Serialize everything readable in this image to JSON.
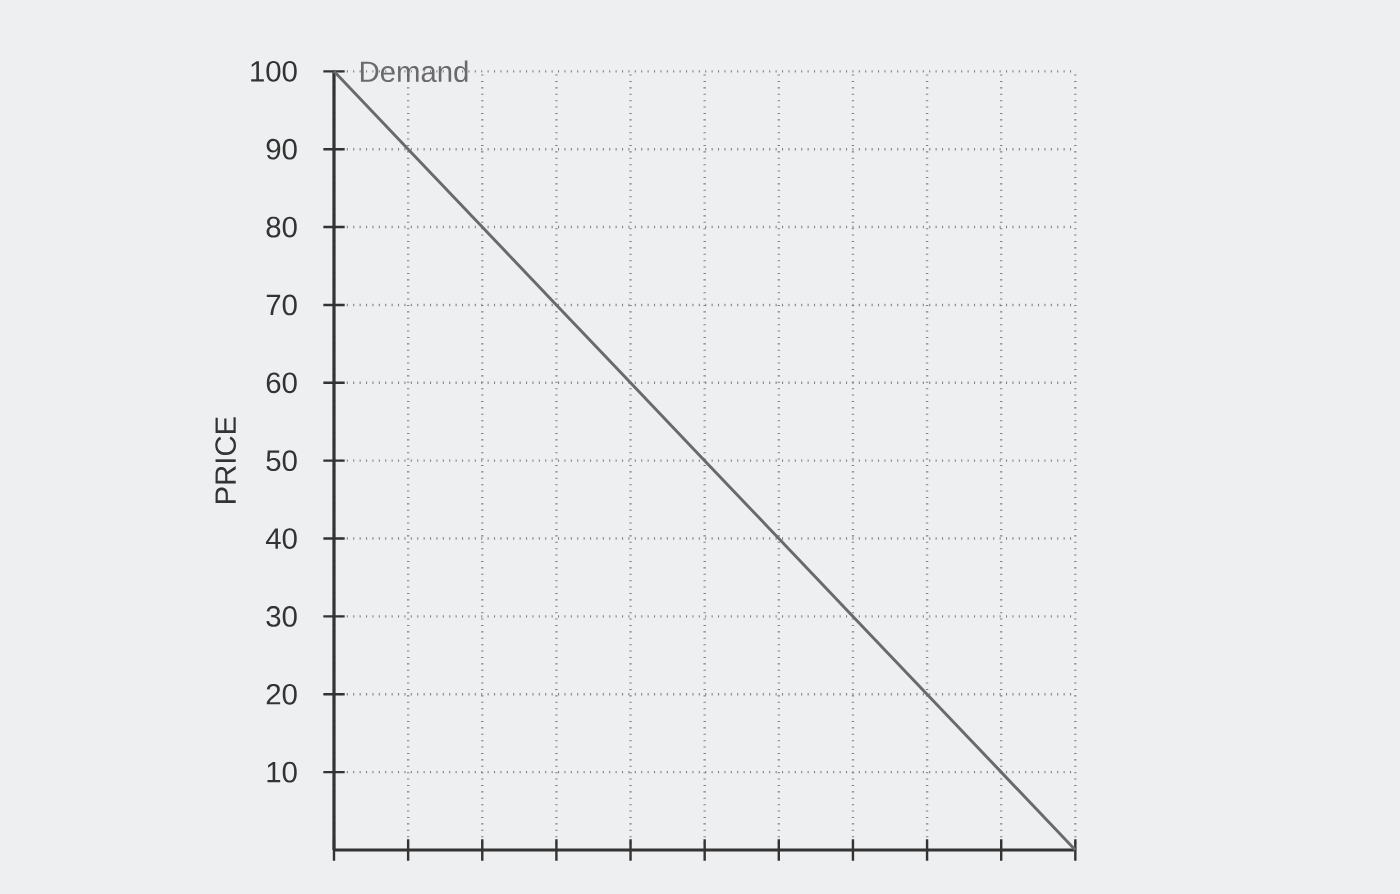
{
  "chart_data": {
    "type": "line",
    "ylabel": "PRICE",
    "categories": [
      null,
      null,
      null,
      null,
      null,
      null,
      null,
      null,
      null,
      null,
      null
    ],
    "series": [
      {
        "name": "Demand",
        "color": "#6a6a6a",
        "values": [
          100,
          90,
          80,
          70,
          60,
          50,
          40,
          30,
          20,
          10,
          0
        ]
      }
    ],
    "ylim": [
      0,
      100
    ],
    "yticks": [
      10,
      20,
      30,
      40,
      50,
      60,
      70,
      80,
      90,
      100
    ],
    "grid": true,
    "marker": "none",
    "line_style": "solid"
  }
}
